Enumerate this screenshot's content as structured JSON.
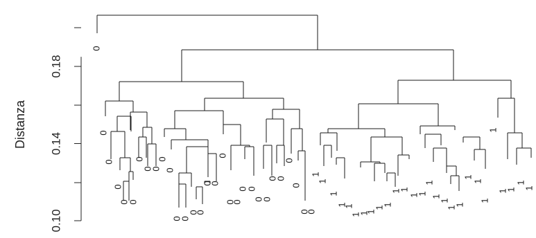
{
  "chart_data": {
    "type": "dendrogram",
    "ylabel": "Distanza",
    "yticks": [
      "0.10",
      "0.14",
      "0.18"
    ],
    "ylim": [
      0.1,
      0.205
    ],
    "leaf_labels": [
      "0",
      "0",
      "0",
      "0",
      "0",
      "0",
      "0",
      "0",
      "0",
      "0",
      "0",
      "0",
      "0",
      "0",
      "0",
      "0",
      "0",
      "0",
      "0",
      "0",
      "0",
      "0",
      "0",
      "0",
      "0",
      "0",
      "0",
      "0",
      "0",
      "0",
      "0",
      "0",
      "0",
      "0",
      "0",
      "0",
      "0",
      "0",
      "0",
      "0",
      "0",
      "0",
      "0",
      "0",
      "0",
      "0",
      "0",
      "1",
      "1",
      "1",
      "1",
      "1",
      "1",
      "1",
      "1",
      "1",
      "1",
      "1",
      "1",
      "1",
      "1",
      "1",
      "1",
      "1",
      "1",
      "1",
      "1",
      "1",
      "1",
      "1",
      "1",
      "1",
      "1",
      "1",
      "1",
      "1",
      "1",
      "1",
      "1",
      "1",
      "1",
      "1",
      "1",
      "1",
      "1"
    ],
    "merges": [
      [
        0.1985,
        0.1985,
        0.1985
      ],
      [
        0.189,
        0.189
      ],
      [
        0.171,
        0.171
      ],
      [
        0.172,
        0.172
      ]
    ],
    "root_height": 0.1985
  }
}
